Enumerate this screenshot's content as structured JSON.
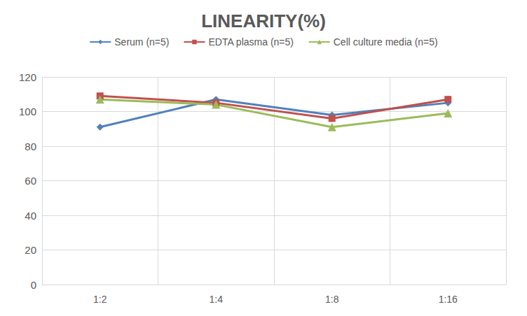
{
  "chart_data": {
    "type": "line",
    "title": "LINEARITY(%)",
    "categories": [
      "1:2",
      "1:4",
      "1:8",
      "1:16"
    ],
    "series": [
      {
        "name": "Serum (n=5)",
        "color": "#4F81BD",
        "marker": "diamond",
        "values": [
          91,
          107,
          98,
          105
        ]
      },
      {
        "name": "EDTA plasma (n=5)",
        "color": "#C0504D",
        "marker": "square",
        "values": [
          109,
          105,
          96,
          107
        ]
      },
      {
        "name": "Cell culture media (n=5)",
        "color": "#9BBB59",
        "marker": "triangle",
        "values": [
          107,
          104,
          91,
          99
        ]
      }
    ],
    "ylim": [
      0,
      120
    ],
    "yticks": [
      0,
      20,
      40,
      60,
      80,
      100,
      120
    ],
    "grid": true,
    "legend": "top"
  }
}
